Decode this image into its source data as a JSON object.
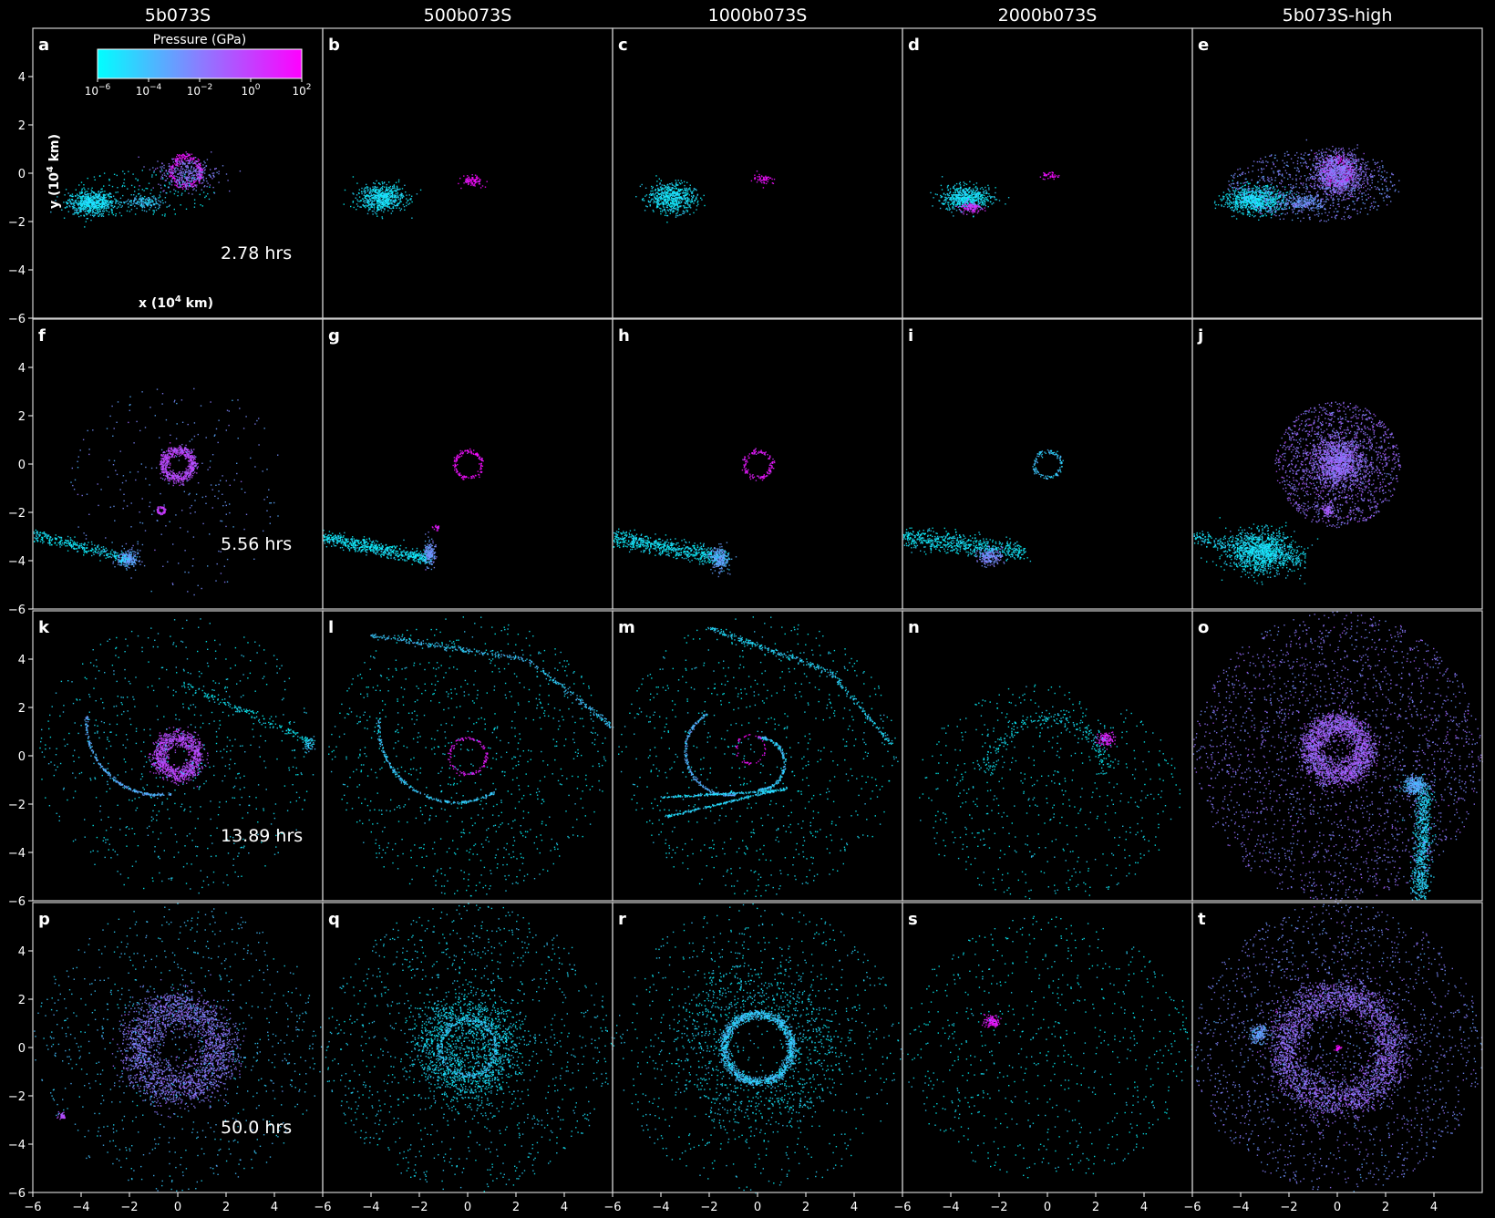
{
  "chart_data": {
    "type": "scatter",
    "description_free": true,
    "columns": [
      "5b073S",
      "500b073S",
      "1000b073S",
      "2000b073S",
      "5b073S-high"
    ],
    "rows": [
      {
        "time": "2.78 hrs",
        "letters": [
          "a",
          "b",
          "c",
          "d",
          "e"
        ]
      },
      {
        "time": "5.56 hrs",
        "letters": [
          "f",
          "g",
          "h",
          "i",
          "j"
        ]
      },
      {
        "time": "13.89 hrs",
        "letters": [
          "k",
          "l",
          "m",
          "n",
          "o"
        ]
      },
      {
        "time": "50.0 hrs",
        "letters": [
          "p",
          "q",
          "r",
          "s",
          "t"
        ]
      }
    ],
    "xlabel_base": "x (10",
    "xlabel_exp": "4",
    "xlabel_unit": " km)",
    "ylabel_base": "y (10",
    "ylabel_exp": "4",
    "ylabel_unit": " km)",
    "xlim": [
      -6,
      6
    ],
    "ylim": [
      -6,
      6
    ],
    "xticks": [
      -6,
      -4,
      -2,
      0,
      2,
      4
    ],
    "yticks": [
      -6,
      -4,
      -2,
      0,
      2,
      4
    ],
    "colorbar": {
      "label": "Pressure (GPa)",
      "scale": "log",
      "min_exp": -6,
      "max_exp": 2,
      "tick_exps": [
        "-6",
        "-4",
        "-2",
        "0",
        "2"
      ],
      "colors": [
        "#00ffff",
        "#8a7dff",
        "#ff00ff"
      ]
    },
    "panels": [
      {
        "id": "a",
        "features": [
          {
            "kind": "blob",
            "cx": -3.6,
            "cy": -1.2,
            "rx": 0.9,
            "ry": 0.45,
            "p": 0.1,
            "n": 700
          },
          {
            "kind": "blob",
            "cx": -1.4,
            "cy": -1.2,
            "rx": 0.7,
            "ry": 0.25,
            "p": 0.2,
            "n": 160
          },
          {
            "kind": "ring",
            "cx": 0.3,
            "cy": 0.1,
            "r": 0.6,
            "w": 0.15,
            "p": 0.9,
            "n": 260
          },
          {
            "kind": "blob",
            "cx": 0.4,
            "cy": 0.0,
            "rx": 1.1,
            "ry": 0.6,
            "p": 0.5,
            "n": 350
          },
          {
            "kind": "scatter",
            "cx": -1.5,
            "cy": -0.8,
            "rx": 3.0,
            "ry": 1.0,
            "p": 0.05,
            "n": 150
          }
        ]
      },
      {
        "id": "b",
        "features": [
          {
            "kind": "blob",
            "cx": -3.6,
            "cy": -1.0,
            "rx": 0.9,
            "ry": 0.5,
            "p": 0.1,
            "n": 650
          },
          {
            "kind": "blob",
            "cx": 0.2,
            "cy": -0.3,
            "rx": 0.4,
            "ry": 0.2,
            "p": 0.95,
            "n": 90
          }
        ]
      },
      {
        "id": "c",
        "features": [
          {
            "kind": "blob",
            "cx": -3.6,
            "cy": -1.0,
            "rx": 0.9,
            "ry": 0.55,
            "p": 0.1,
            "n": 650
          },
          {
            "kind": "blob",
            "cx": 0.2,
            "cy": -0.2,
            "rx": 0.4,
            "ry": 0.2,
            "p": 0.95,
            "n": 60
          }
        ]
      },
      {
        "id": "d",
        "features": [
          {
            "kind": "blob",
            "cx": -3.4,
            "cy": -1.0,
            "rx": 0.9,
            "ry": 0.45,
            "p": 0.1,
            "n": 600
          },
          {
            "kind": "blob",
            "cx": -3.2,
            "cy": -1.4,
            "rx": 0.4,
            "ry": 0.2,
            "p": 0.8,
            "n": 120
          },
          {
            "kind": "blob",
            "cx": 0.1,
            "cy": -0.1,
            "rx": 0.3,
            "ry": 0.2,
            "p": 0.95,
            "n": 40
          }
        ]
      },
      {
        "id": "e",
        "features": [
          {
            "kind": "blob",
            "cx": -3.4,
            "cy": -1.1,
            "rx": 1.1,
            "ry": 0.5,
            "p": 0.1,
            "n": 900
          },
          {
            "kind": "blob",
            "cx": -1.4,
            "cy": -1.2,
            "rx": 0.8,
            "ry": 0.3,
            "p": 0.4,
            "n": 250
          },
          {
            "kind": "ring",
            "cx": 0.0,
            "cy": 0.1,
            "r": 0.5,
            "w": 0.2,
            "p": 0.95,
            "n": 200
          },
          {
            "kind": "blob",
            "cx": 0.0,
            "cy": 0.0,
            "rx": 1.0,
            "ry": 0.8,
            "p": 0.55,
            "n": 1100
          },
          {
            "kind": "scatter",
            "cx": -1.0,
            "cy": -0.5,
            "rx": 3.6,
            "ry": 1.5,
            "p": 0.45,
            "n": 700
          }
        ]
      },
      {
        "id": "f",
        "features": [
          {
            "kind": "ring",
            "cx": 0.0,
            "cy": 0.0,
            "r": 0.6,
            "w": 0.22,
            "p": 0.7,
            "n": 650
          },
          {
            "kind": "ring",
            "cx": -0.7,
            "cy": -1.9,
            "r": 0.15,
            "w": 0.05,
            "p": 0.75,
            "n": 70
          },
          {
            "kind": "blob",
            "cx": -2.1,
            "cy": -3.9,
            "rx": 0.4,
            "ry": 0.3,
            "p": 0.35,
            "n": 260
          },
          {
            "kind": "streak",
            "x0": -6,
            "y0": -2.9,
            "x1": -2.2,
            "y1": -3.9,
            "w": 0.3,
            "p": 0.08,
            "n": 300
          },
          {
            "kind": "scatter",
            "cx": 0.0,
            "cy": -1.0,
            "rx": 4.5,
            "ry": 4.5,
            "p": 0.4,
            "n": 260
          }
        ]
      },
      {
        "id": "g",
        "features": [
          {
            "kind": "ring",
            "cx": 0.0,
            "cy": 0.0,
            "r": 0.55,
            "w": 0.1,
            "p": 0.95,
            "n": 150
          },
          {
            "kind": "streak",
            "x0": -6,
            "y0": -3.0,
            "x1": -1.6,
            "y1": -3.9,
            "w": 0.35,
            "p": 0.08,
            "n": 650
          },
          {
            "kind": "blob",
            "cx": -1.6,
            "cy": -3.7,
            "rx": 0.2,
            "ry": 0.5,
            "p": 0.4,
            "n": 180
          },
          {
            "kind": "blob",
            "cx": -1.3,
            "cy": -2.6,
            "rx": 0.15,
            "ry": 0.1,
            "p": 0.9,
            "n": 20
          }
        ]
      },
      {
        "id": "h",
        "features": [
          {
            "kind": "ring",
            "cx": 0.0,
            "cy": 0.0,
            "r": 0.55,
            "w": 0.1,
            "p": 0.9,
            "n": 140
          },
          {
            "kind": "streak",
            "x0": -6,
            "y0": -3.0,
            "x1": -1.3,
            "y1": -3.9,
            "w": 0.45,
            "p": 0.08,
            "n": 700
          },
          {
            "kind": "blob",
            "cx": -1.6,
            "cy": -3.9,
            "rx": 0.35,
            "ry": 0.45,
            "p": 0.35,
            "n": 220
          }
        ]
      },
      {
        "id": "i",
        "features": [
          {
            "kind": "ring",
            "cx": 0.0,
            "cy": 0.0,
            "r": 0.55,
            "w": 0.1,
            "p": 0.2,
            "n": 130
          },
          {
            "kind": "streak",
            "x0": -6,
            "y0": -3.0,
            "x1": -1.0,
            "y1": -3.6,
            "w": 0.5,
            "p": 0.08,
            "n": 650
          },
          {
            "kind": "blob",
            "cx": -2.4,
            "cy": -3.8,
            "rx": 0.45,
            "ry": 0.3,
            "p": 0.45,
            "n": 200
          }
        ]
      },
      {
        "id": "j",
        "features": [
          {
            "kind": "blob",
            "cx": 0.0,
            "cy": 0.1,
            "rx": 1.0,
            "ry": 0.9,
            "p": 0.55,
            "n": 1300
          },
          {
            "kind": "scatter",
            "cx": 0.0,
            "cy": 0.0,
            "rx": 2.6,
            "ry": 2.6,
            "p": 0.55,
            "n": 1400
          },
          {
            "kind": "blob",
            "cx": -0.4,
            "cy": -1.9,
            "rx": 0.2,
            "ry": 0.2,
            "p": 0.6,
            "n": 90
          },
          {
            "kind": "blob",
            "cx": -3.2,
            "cy": -3.6,
            "rx": 1.3,
            "ry": 0.8,
            "p": 0.1,
            "n": 1100
          },
          {
            "kind": "streak",
            "x0": -6,
            "y0": -3.0,
            "x1": -1.5,
            "y1": -4.0,
            "w": 0.4,
            "p": 0.1,
            "n": 300
          }
        ]
      },
      {
        "id": "k",
        "features": [
          {
            "kind": "ring",
            "cx": 0.0,
            "cy": 0.0,
            "r": 0.8,
            "w": 0.35,
            "p": 0.7,
            "n": 1100
          },
          {
            "kind": "arc",
            "cx": -0.8,
            "cy": 1.4,
            "r": 3.0,
            "a0": 175,
            "a1": 280,
            "w": 0.06,
            "p": 0.3,
            "n": 260
          },
          {
            "kind": "streak",
            "x0": 0.2,
            "y0": 3.0,
            "x1": 5.5,
            "y1": 0.6,
            "w": 0.2,
            "p": 0.05,
            "n": 160
          },
          {
            "kind": "blob",
            "cx": 5.4,
            "cy": 0.5,
            "rx": 0.2,
            "ry": 0.25,
            "p": 0.2,
            "n": 50
          },
          {
            "kind": "scatter",
            "cx": 0.0,
            "cy": 0.0,
            "rx": 5.8,
            "ry": 5.8,
            "p": 0.1,
            "n": 650
          }
        ]
      },
      {
        "id": "l",
        "features": [
          {
            "kind": "ring",
            "cx": 0.0,
            "cy": 0.0,
            "r": 0.75,
            "w": 0.08,
            "p": 0.9,
            "n": 120
          },
          {
            "kind": "arc",
            "cx": -0.5,
            "cy": 1.3,
            "r": 3.2,
            "a0": 175,
            "a1": 300,
            "w": 0.06,
            "p": 0.2,
            "n": 280
          },
          {
            "kind": "streak",
            "x0": -4.0,
            "y0": 5.0,
            "x1": 2.5,
            "y1": 4.0,
            "w": 0.15,
            "p": 0.2,
            "n": 220
          },
          {
            "kind": "streak",
            "x0": 2.5,
            "y0": 4.0,
            "x1": 6.0,
            "y1": 1.2,
            "w": 0.15,
            "p": 0.2,
            "n": 160
          },
          {
            "kind": "scatter",
            "cx": 0.0,
            "cy": 0.0,
            "rx": 5.8,
            "ry": 5.8,
            "p": 0.06,
            "n": 850
          }
        ]
      },
      {
        "id": "m",
        "features": [
          {
            "kind": "arc",
            "cx": 0.0,
            "cy": -0.3,
            "r": 1.1,
            "a0": -90,
            "a1": 90,
            "w": 0.06,
            "p": 0.2,
            "n": 200
          },
          {
            "kind": "arc",
            "cx": -1.2,
            "cy": 0.2,
            "r": 1.8,
            "a0": 120,
            "a1": 280,
            "w": 0.06,
            "p": 0.3,
            "n": 230
          },
          {
            "kind": "streak",
            "x0": -4.0,
            "y0": -1.7,
            "x1": 1.1,
            "y1": -1.4,
            "w": 0.06,
            "p": 0.15,
            "n": 200
          },
          {
            "kind": "streak",
            "x0": -3.8,
            "y0": -2.5,
            "x1": 1.2,
            "y1": -1.3,
            "w": 0.06,
            "p": 0.15,
            "n": 220
          },
          {
            "kind": "ring",
            "cx": -0.3,
            "cy": 0.3,
            "r": 0.6,
            "w": 0.05,
            "p": 0.95,
            "n": 50
          },
          {
            "kind": "streak",
            "x0": -2.0,
            "y0": 5.3,
            "x1": 3.0,
            "y1": 3.5,
            "w": 0.15,
            "p": 0.15,
            "n": 220
          },
          {
            "kind": "streak",
            "x0": 3.0,
            "y0": 3.5,
            "x1": 5.5,
            "y1": 0.5,
            "w": 0.12,
            "p": 0.15,
            "n": 130
          },
          {
            "kind": "scatter",
            "cx": 0.0,
            "cy": 0.0,
            "rx": 5.8,
            "ry": 5.8,
            "p": 0.06,
            "n": 750
          }
        ]
      },
      {
        "id": "n",
        "features": [
          {
            "kind": "blob",
            "cx": 2.4,
            "cy": 0.7,
            "rx": 0.35,
            "ry": 0.25,
            "p": 0.85,
            "n": 120
          },
          {
            "kind": "arc",
            "cx": 0.0,
            "cy": -0.8,
            "r": 2.4,
            "a0": 0,
            "a1": 180,
            "w": 0.4,
            "p": 0.06,
            "n": 240
          },
          {
            "kind": "scatter",
            "cx": 0.0,
            "cy": -1.5,
            "rx": 5.5,
            "ry": 4.5,
            "p": 0.06,
            "n": 550
          }
        ]
      },
      {
        "id": "o",
        "features": [
          {
            "kind": "ring",
            "cx": 0.0,
            "cy": 0.3,
            "r": 1.1,
            "w": 0.55,
            "p": 0.6,
            "n": 2200
          },
          {
            "kind": "blob",
            "cx": 3.2,
            "cy": -1.2,
            "rx": 0.45,
            "ry": 0.35,
            "p": 0.3,
            "n": 350
          },
          {
            "kind": "streak",
            "x0": 3.6,
            "y0": -1.5,
            "x1": 3.4,
            "y1": -5.8,
            "w": 0.45,
            "p": 0.15,
            "n": 700
          },
          {
            "kind": "scatter",
            "cx": 0.0,
            "cy": 0.0,
            "rx": 6.0,
            "ry": 6.0,
            "p": 0.5,
            "n": 2400
          }
        ]
      },
      {
        "id": "p",
        "features": [
          {
            "kind": "ring",
            "cx": 0.0,
            "cy": 0.0,
            "r": 1.7,
            "w": 0.9,
            "p": 0.5,
            "n": 2400
          },
          {
            "kind": "blob",
            "cx": -4.8,
            "cy": -2.8,
            "rx": 0.15,
            "ry": 0.15,
            "p": 0.7,
            "n": 40
          },
          {
            "kind": "scatter",
            "cx": 0.0,
            "cy": 0.0,
            "rx": 6.0,
            "ry": 6.0,
            "p": 0.2,
            "n": 800
          }
        ]
      },
      {
        "id": "q",
        "features": [
          {
            "kind": "ring",
            "cx": 0.0,
            "cy": 0.0,
            "r": 1.5,
            "w": 1.1,
            "p": 0.1,
            "n": 1500
          },
          {
            "kind": "ring",
            "cx": 0.0,
            "cy": 0.0,
            "r": 1.15,
            "w": 0.12,
            "p": 0.2,
            "n": 300
          },
          {
            "kind": "scatter",
            "cx": 0.0,
            "cy": 0.0,
            "rx": 6.0,
            "ry": 6.0,
            "p": 0.12,
            "n": 1100
          }
        ]
      },
      {
        "id": "r",
        "features": [
          {
            "kind": "ring",
            "cx": 0.0,
            "cy": 0.0,
            "r": 1.4,
            "w": 0.2,
            "p": 0.2,
            "n": 1400
          },
          {
            "kind": "ring",
            "cx": 0.0,
            "cy": 0.0,
            "r": 2.6,
            "w": 1.4,
            "p": 0.1,
            "n": 900
          },
          {
            "kind": "scatter",
            "cx": 0.0,
            "cy": 0.0,
            "rx": 6.0,
            "ry": 6.0,
            "p": 0.1,
            "n": 700
          }
        ]
      },
      {
        "id": "s",
        "features": [
          {
            "kind": "blob",
            "cx": -2.3,
            "cy": 1.1,
            "rx": 0.3,
            "ry": 0.25,
            "p": 0.9,
            "n": 120
          },
          {
            "kind": "scatter",
            "cx": 0.0,
            "cy": 0.0,
            "rx": 6.0,
            "ry": 5.5,
            "p": 0.06,
            "n": 700
          }
        ]
      },
      {
        "id": "t",
        "features": [
          {
            "kind": "ring",
            "cx": 0.0,
            "cy": 0.0,
            "r": 2.2,
            "w": 0.8,
            "p": 0.55,
            "n": 3200
          },
          {
            "kind": "blob",
            "cx": -3.3,
            "cy": 0.6,
            "rx": 0.35,
            "ry": 0.35,
            "p": 0.35,
            "n": 200
          },
          {
            "kind": "blob",
            "cx": 0.0,
            "cy": 0.0,
            "rx": 0.15,
            "ry": 0.1,
            "p": 0.95,
            "n": 30
          },
          {
            "kind": "scatter",
            "cx": 0.0,
            "cy": 0.0,
            "rx": 6.0,
            "ry": 6.0,
            "p": 0.45,
            "n": 1800
          }
        ]
      }
    ]
  }
}
